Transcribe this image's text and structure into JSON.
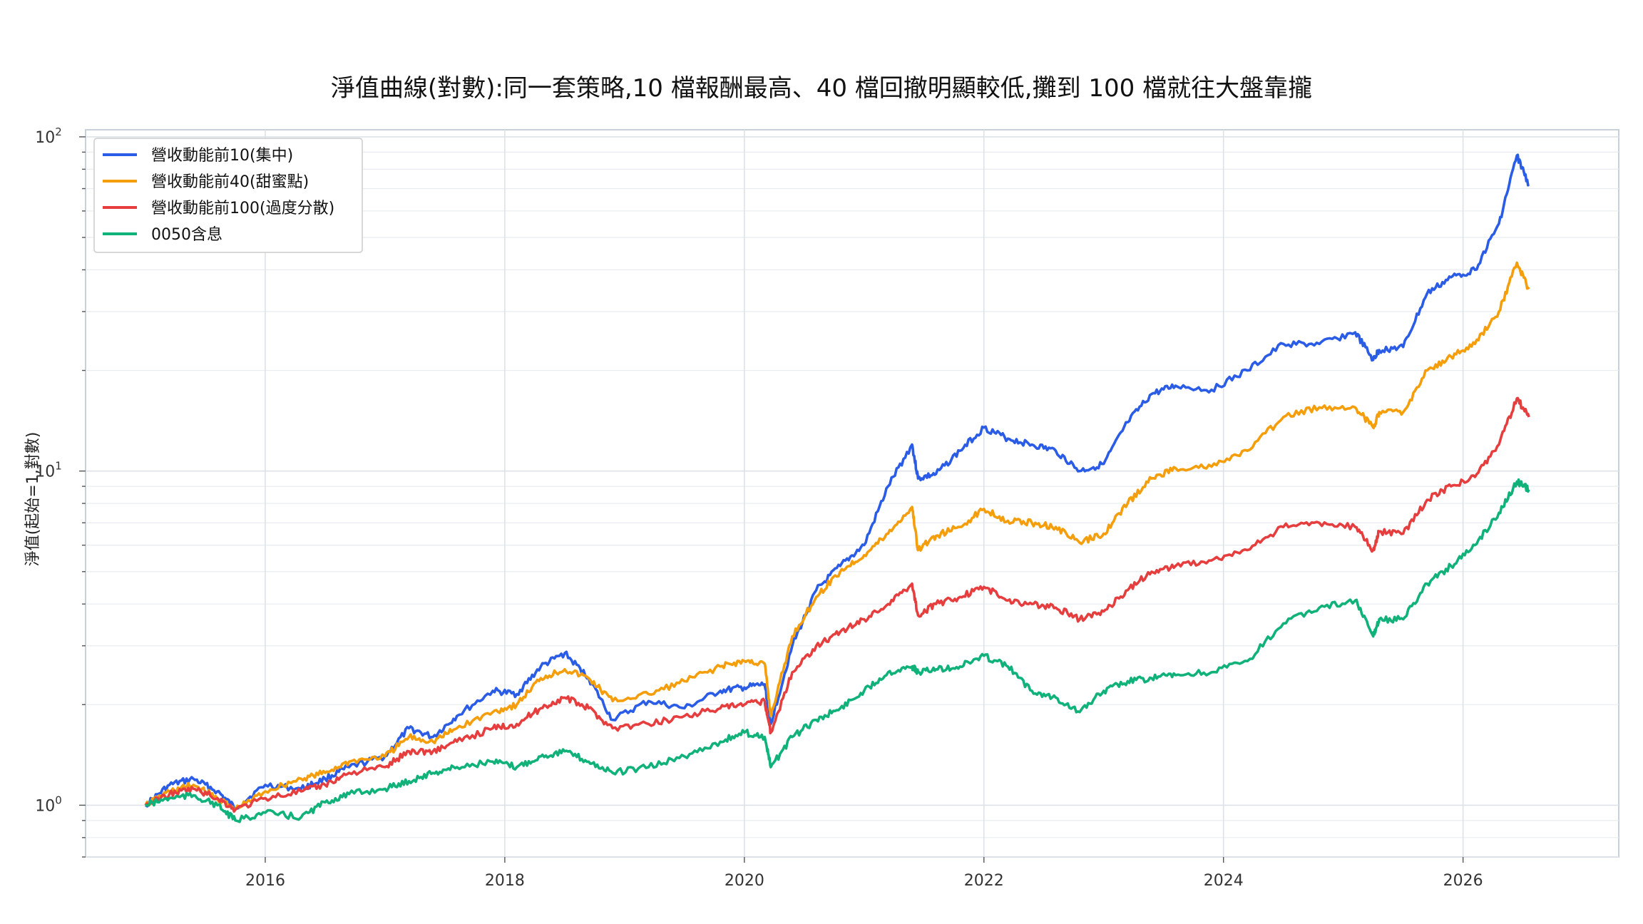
{
  "chart_data": {
    "type": "line",
    "title": "淨值曲線(對數):同一套策略,10 檔報酬最高、40 檔回撤明顯較低,攤到 100 檔就往大盤靠攏",
    "xlabel": "",
    "ylabel": "淨值(起始=1,對數)",
    "y_scale": "log",
    "ylim": [
      0.7,
      105
    ],
    "xlim": [
      2014.5,
      2027.3
    ],
    "x_ticks": [
      2016,
      2018,
      2020,
      2022,
      2024,
      2026
    ],
    "x_tick_labels": [
      "2016",
      "2018",
      "2020",
      "2022",
      "2024",
      "2026"
    ],
    "y_ticks": [
      1,
      10,
      100
    ],
    "y_tick_labels": [
      "10",
      "10",
      "10"
    ],
    "y_tick_exponents": [
      "0",
      "1",
      "2"
    ],
    "grid": true,
    "legend_position": "upper-left",
    "series": [
      {
        "name": "營收動能前10(集中)",
        "color": "#2b5ce6",
        "x": [
          2015.0,
          2015.2,
          2015.4,
          2015.6,
          2015.75,
          2016.0,
          2016.3,
          2016.5,
          2016.7,
          2017.0,
          2017.2,
          2017.4,
          2017.6,
          2017.9,
          2018.1,
          2018.3,
          2018.5,
          2018.7,
          2018.9,
          2019.2,
          2019.5,
          2019.8,
          2020.0,
          2020.17,
          2020.22,
          2020.4,
          2020.6,
          2020.8,
          2021.0,
          2021.2,
          2021.4,
          2021.45,
          2021.6,
          2021.8,
          2022.0,
          2022.2,
          2022.4,
          2022.6,
          2022.8,
          2023.0,
          2023.2,
          2023.4,
          2023.6,
          2023.9,
          2024.2,
          2024.5,
          2024.8,
          2025.1,
          2025.25,
          2025.3,
          2025.5,
          2025.7,
          2025.9,
          2026.1,
          2026.3,
          2026.45,
          2026.55
        ],
        "y": [
          1.0,
          1.15,
          1.2,
          1.1,
          0.98,
          1.15,
          1.12,
          1.2,
          1.3,
          1.4,
          1.7,
          1.6,
          1.85,
          2.2,
          2.15,
          2.6,
          2.85,
          2.4,
          1.8,
          2.05,
          1.95,
          2.2,
          2.25,
          2.3,
          1.75,
          3.0,
          4.4,
          5.2,
          6.0,
          9.0,
          12.0,
          9.5,
          9.8,
          11.5,
          13.5,
          12.5,
          12.0,
          11.5,
          10.0,
          10.5,
          14.0,
          17.0,
          18.0,
          17.5,
          20.0,
          24.0,
          24.0,
          26.0,
          21.5,
          23.0,
          23.5,
          34.0,
          38.0,
          40.0,
          55.0,
          88.0,
          72.0
        ]
      },
      {
        "name": "營收動能前40(甜蜜點)",
        "color": "#f59e0b",
        "x": [
          2015.0,
          2015.2,
          2015.4,
          2015.6,
          2015.75,
          2016.0,
          2016.3,
          2016.5,
          2016.7,
          2017.0,
          2017.2,
          2017.4,
          2017.6,
          2017.9,
          2018.1,
          2018.3,
          2018.5,
          2018.7,
          2018.9,
          2019.2,
          2019.5,
          2019.8,
          2020.0,
          2020.17,
          2020.22,
          2020.4,
          2020.6,
          2020.8,
          2021.0,
          2021.2,
          2021.4,
          2021.45,
          2021.6,
          2021.8,
          2022.0,
          2022.2,
          2022.4,
          2022.6,
          2022.8,
          2023.0,
          2023.2,
          2023.4,
          2023.6,
          2023.9,
          2024.2,
          2024.5,
          2024.8,
          2025.1,
          2025.25,
          2025.3,
          2025.5,
          2025.7,
          2025.9,
          2026.1,
          2026.3,
          2026.45,
          2026.55
        ],
        "y": [
          1.0,
          1.1,
          1.15,
          1.05,
          0.97,
          1.1,
          1.2,
          1.25,
          1.35,
          1.4,
          1.6,
          1.55,
          1.7,
          1.9,
          2.0,
          2.4,
          2.55,
          2.4,
          2.05,
          2.15,
          2.35,
          2.6,
          2.7,
          2.65,
          1.85,
          3.2,
          4.2,
          5.0,
          5.6,
          6.5,
          7.8,
          5.8,
          6.4,
          6.8,
          7.7,
          7.1,
          7.0,
          6.8,
          6.1,
          6.5,
          8.0,
          9.5,
          10.2,
          10.3,
          11.5,
          14.5,
          15.5,
          15.5,
          13.5,
          15.0,
          15.0,
          20.0,
          22.0,
          24.0,
          30.0,
          42.0,
          35.0
        ]
      },
      {
        "name": "營收動能前100(過度分散)",
        "color": "#e63e3e",
        "x": [
          2015.0,
          2015.2,
          2015.4,
          2015.6,
          2015.75,
          2016.0,
          2016.3,
          2016.5,
          2016.7,
          2017.0,
          2017.2,
          2017.4,
          2017.6,
          2017.9,
          2018.1,
          2018.3,
          2018.5,
          2018.7,
          2018.9,
          2019.2,
          2019.5,
          2019.8,
          2020.0,
          2020.17,
          2020.22,
          2020.4,
          2020.6,
          2020.8,
          2021.0,
          2021.2,
          2021.4,
          2021.45,
          2021.6,
          2021.8,
          2022.0,
          2022.2,
          2022.4,
          2022.6,
          2022.8,
          2023.0,
          2023.2,
          2023.4,
          2023.6,
          2023.9,
          2024.2,
          2024.5,
          2024.8,
          2025.1,
          2025.25,
          2025.3,
          2025.5,
          2025.7,
          2025.9,
          2026.1,
          2026.3,
          2026.45,
          2026.55
        ],
        "y": [
          1.0,
          1.08,
          1.12,
          1.05,
          0.97,
          1.05,
          1.1,
          1.15,
          1.25,
          1.3,
          1.45,
          1.45,
          1.55,
          1.7,
          1.75,
          1.95,
          2.1,
          1.95,
          1.7,
          1.75,
          1.85,
          1.95,
          2.0,
          2.05,
          1.65,
          2.5,
          3.0,
          3.3,
          3.6,
          4.0,
          4.6,
          3.7,
          4.0,
          4.2,
          4.5,
          4.1,
          4.0,
          3.9,
          3.6,
          3.8,
          4.4,
          5.0,
          5.2,
          5.4,
          5.8,
          6.8,
          7.0,
          6.8,
          5.8,
          6.6,
          6.5,
          8.2,
          9.0,
          9.6,
          12.0,
          16.5,
          14.5
        ]
      },
      {
        "name": "0050含息",
        "color": "#10b27a",
        "x": [
          2015.0,
          2015.2,
          2015.4,
          2015.6,
          2015.75,
          2016.0,
          2016.3,
          2016.5,
          2016.7,
          2017.0,
          2017.2,
          2017.4,
          2017.6,
          2017.9,
          2018.1,
          2018.3,
          2018.5,
          2018.7,
          2018.9,
          2019.2,
          2019.5,
          2019.8,
          2020.0,
          2020.17,
          2020.22,
          2020.4,
          2020.6,
          2020.8,
          2021.0,
          2021.2,
          2021.4,
          2021.45,
          2021.6,
          2021.8,
          2022.0,
          2022.2,
          2022.4,
          2022.6,
          2022.8,
          2023.0,
          2023.2,
          2023.4,
          2023.6,
          2023.9,
          2024.2,
          2024.5,
          2024.8,
          2025.1,
          2025.25,
          2025.3,
          2025.5,
          2025.7,
          2025.9,
          2026.1,
          2026.3,
          2026.45,
          2026.55
        ],
        "y": [
          1.0,
          1.05,
          1.07,
          1.0,
          0.9,
          0.95,
          0.92,
          1.02,
          1.08,
          1.12,
          1.18,
          1.25,
          1.3,
          1.35,
          1.3,
          1.4,
          1.45,
          1.35,
          1.25,
          1.3,
          1.4,
          1.55,
          1.65,
          1.6,
          1.3,
          1.6,
          1.8,
          1.95,
          2.2,
          2.5,
          2.6,
          2.5,
          2.55,
          2.6,
          2.8,
          2.6,
          2.2,
          2.1,
          1.9,
          2.2,
          2.35,
          2.4,
          2.45,
          2.5,
          2.7,
          3.5,
          3.9,
          4.1,
          3.2,
          3.6,
          3.6,
          4.6,
          5.2,
          6.0,
          7.5,
          9.3,
          8.8
        ]
      }
    ]
  }
}
